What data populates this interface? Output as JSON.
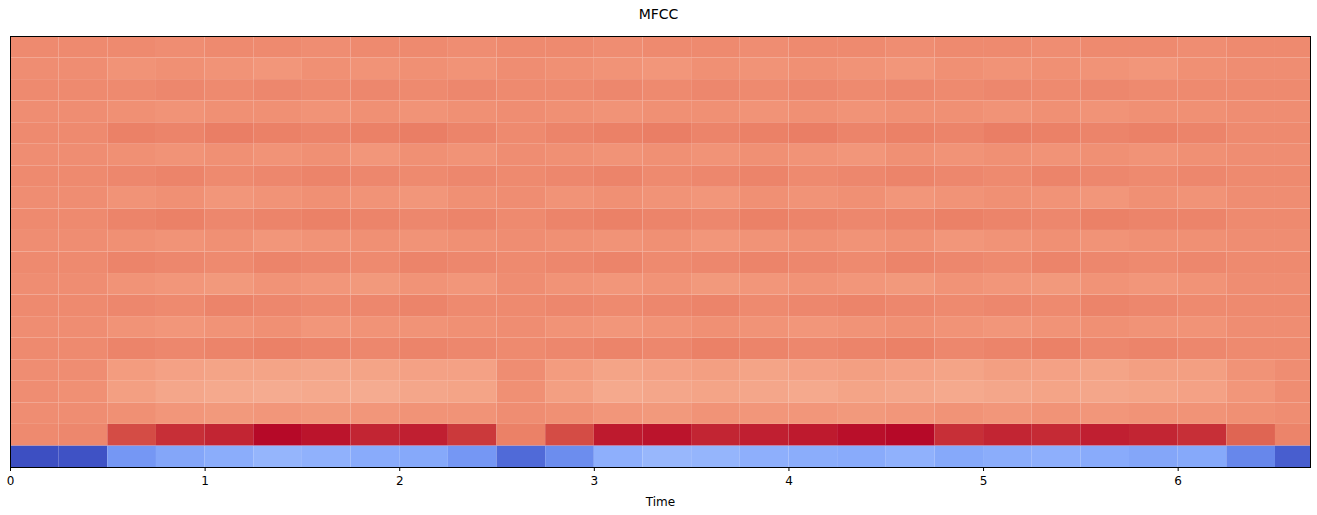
{
  "chart_data": {
    "type": "heatmap",
    "title": "MFCC",
    "x_label": "Time",
    "x": [
      0,
      0.25,
      0.5,
      0.75,
      1,
      1.25,
      1.5,
      1.75,
      2,
      2.25,
      2.5,
      2.75,
      3,
      3.25,
      3.5,
      3.75,
      4,
      4.25,
      4.5,
      4.75,
      5,
      5.25,
      5.5,
      5.75,
      6,
      6.25,
      6.5
    ],
    "xlim": [
      0,
      6.68
    ],
    "xticks": [
      0,
      1,
      2,
      3,
      4,
      5,
      6
    ],
    "ylim": [
      0,
      20
    ],
    "tick_labels": "x",
    "zlim": [
      -550,
      160
    ],
    "z": [
      [
        -545,
        -540,
        -420,
        -390,
        -375,
        -355,
        -365,
        -380,
        -385,
        -420,
        -500,
        -440,
        -370,
        -350,
        -355,
        -370,
        -375,
        -380,
        -365,
        -385,
        -375,
        -370,
        -380,
        -390,
        -385,
        -450,
        -520
      ],
      [
        5,
        10,
        90,
        120,
        130,
        155,
        145,
        130,
        135,
        110,
        20,
        90,
        140,
        145,
        130,
        135,
        140,
        150,
        155,
        120,
        130,
        125,
        135,
        130,
        120,
        60,
        15
      ],
      [
        0,
        0,
        -5,
        -15,
        -20,
        -15,
        -20,
        -15,
        -10,
        -10,
        0,
        -5,
        -15,
        -20,
        -10,
        -15,
        -15,
        -20,
        -15,
        -10,
        -15,
        -10,
        -15,
        -10,
        -10,
        -5,
        0
      ],
      [
        0,
        -5,
        -30,
        -45,
        -50,
        -55,
        -50,
        -55,
        -45,
        -40,
        -5,
        -30,
        -50,
        -45,
        -40,
        -45,
        -50,
        -40,
        -45,
        -50,
        -45,
        -40,
        -45,
        -40,
        -35,
        -15,
        0
      ],
      [
        0,
        0,
        -25,
        -35,
        -40,
        -40,
        -45,
        -40,
        -35,
        -35,
        0,
        -25,
        -40,
        -35,
        -30,
        -40,
        -35,
        -30,
        -35,
        -40,
        -30,
        -35,
        -40,
        -30,
        -30,
        -10,
        0
      ],
      [
        5,
        5,
        15,
        10,
        15,
        20,
        15,
        10,
        15,
        10,
        5,
        10,
        15,
        10,
        20,
        15,
        10,
        15,
        20,
        10,
        15,
        20,
        10,
        15,
        10,
        5,
        5
      ],
      [
        0,
        0,
        -10,
        -15,
        -10,
        -5,
        -15,
        -10,
        -10,
        -5,
        0,
        -10,
        -15,
        -10,
        -5,
        -10,
        -15,
        -10,
        -5,
        -10,
        -15,
        -10,
        -5,
        -10,
        -10,
        0,
        0
      ],
      [
        5,
        5,
        10,
        5,
        15,
        10,
        5,
        10,
        15,
        5,
        5,
        10,
        5,
        10,
        15,
        5,
        10,
        15,
        10,
        5,
        10,
        5,
        15,
        10,
        5,
        5,
        5
      ],
      [
        0,
        0,
        -10,
        -15,
        -20,
        -10,
        -15,
        -20,
        -10,
        -15,
        0,
        -10,
        -15,
        -10,
        -20,
        -15,
        -10,
        -15,
        -20,
        -10,
        -15,
        -20,
        -10,
        -15,
        -10,
        0,
        0
      ],
      [
        5,
        5,
        15,
        10,
        5,
        15,
        10,
        5,
        15,
        10,
        5,
        10,
        15,
        5,
        10,
        15,
        10,
        5,
        15,
        10,
        5,
        15,
        10,
        5,
        10,
        5,
        5
      ],
      [
        0,
        0,
        -5,
        -10,
        -5,
        -15,
        -10,
        -5,
        -10,
        -5,
        0,
        -5,
        -10,
        -5,
        -15,
        -10,
        -5,
        -10,
        -5,
        -15,
        -10,
        -5,
        -10,
        -5,
        -5,
        0,
        0
      ],
      [
        5,
        5,
        15,
        20,
        10,
        15,
        20,
        15,
        10,
        15,
        5,
        15,
        20,
        15,
        10,
        20,
        15,
        10,
        15,
        20,
        15,
        10,
        20,
        15,
        15,
        5,
        5
      ],
      [
        0,
        0,
        -10,
        -5,
        -15,
        -10,
        -5,
        -10,
        -15,
        -5,
        0,
        -10,
        -5,
        -10,
        -15,
        -5,
        -10,
        -5,
        -15,
        -10,
        -5,
        -10,
        -15,
        -5,
        -10,
        0,
        0
      ],
      [
        5,
        5,
        10,
        15,
        5,
        10,
        15,
        10,
        5,
        10,
        5,
        10,
        15,
        5,
        10,
        15,
        5,
        10,
        15,
        10,
        5,
        15,
        10,
        5,
        10,
        5,
        5
      ],
      [
        0,
        0,
        -5,
        -10,
        -5,
        -10,
        -5,
        -15,
        -5,
        -10,
        0,
        -5,
        -10,
        -5,
        -10,
        -5,
        -10,
        -15,
        -5,
        -10,
        -5,
        -10,
        -5,
        -10,
        -5,
        0,
        0
      ],
      [
        5,
        5,
        20,
        15,
        25,
        20,
        15,
        20,
        25,
        15,
        5,
        15,
        20,
        25,
        15,
        20,
        25,
        15,
        20,
        15,
        25,
        20,
        15,
        20,
        15,
        5,
        5
      ],
      [
        0,
        0,
        -5,
        -10,
        -5,
        -5,
        -10,
        -5,
        -10,
        -5,
        0,
        -5,
        -10,
        -5,
        -5,
        -10,
        -5,
        -10,
        -5,
        -5,
        -10,
        -5,
        -10,
        -5,
        -5,
        0,
        0
      ],
      [
        5,
        5,
        5,
        10,
        5,
        10,
        5,
        10,
        5,
        10,
        5,
        5,
        10,
        5,
        10,
        5,
        10,
        5,
        10,
        5,
        10,
        5,
        10,
        5,
        5,
        5,
        5
      ],
      [
        0,
        0,
        -10,
        -5,
        -10,
        -15,
        -5,
        -10,
        -5,
        -10,
        0,
        -5,
        -10,
        -15,
        -5,
        -10,
        -5,
        -10,
        -15,
        -5,
        -10,
        -5,
        -10,
        -15,
        -5,
        0,
        0
      ],
      [
        5,
        5,
        5,
        0,
        5,
        5,
        0,
        5,
        5,
        0,
        5,
        5,
        0,
        5,
        5,
        0,
        5,
        5,
        0,
        5,
        5,
        0,
        5,
        5,
        0,
        5,
        5
      ]
    ]
  }
}
